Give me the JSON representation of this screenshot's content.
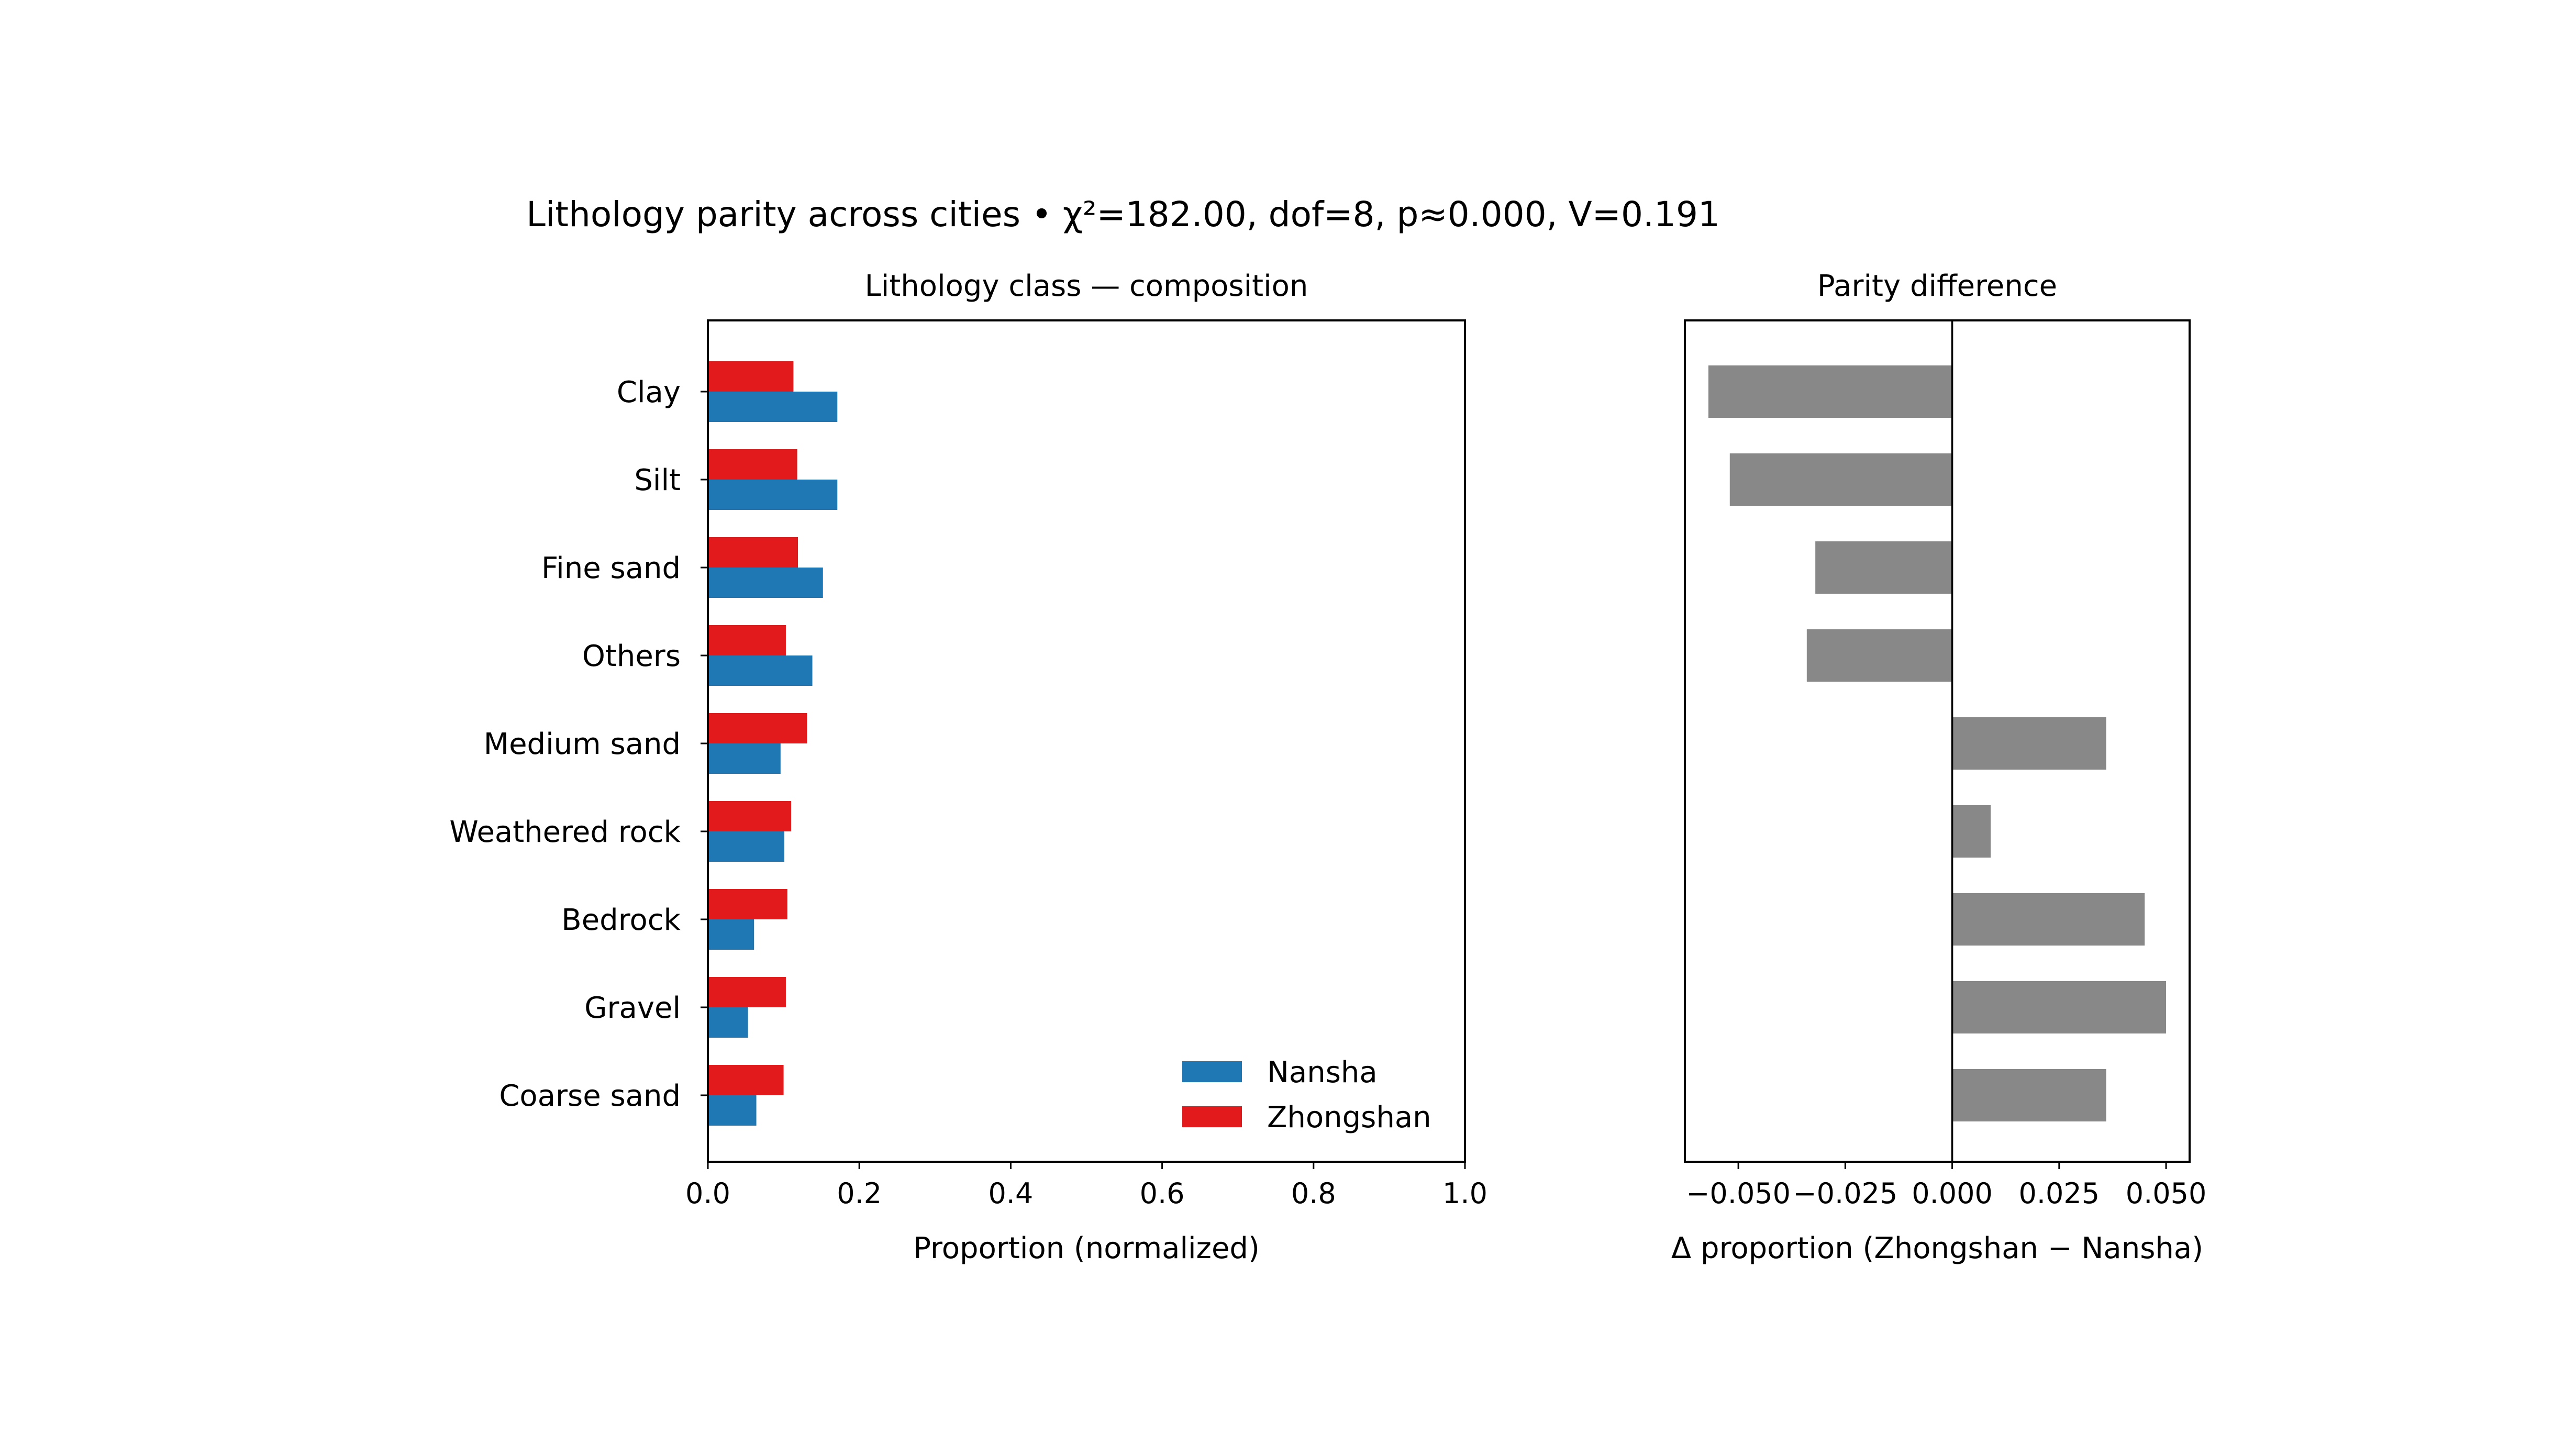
{
  "suptitle": "Lithology parity across cities • χ²=182.00, dof=8, p≈0.000, V=0.191",
  "chart_data": [
    {
      "type": "bar",
      "orientation": "horizontal",
      "title": "Lithology class — composition",
      "xlabel": "Proportion (normalized)",
      "ylabel": "",
      "xlim": [
        0.0,
        1.0
      ],
      "xticks": [
        "0.0",
        "0.2",
        "0.4",
        "0.6",
        "0.8",
        "1.0"
      ],
      "xtick_values": [
        0.0,
        0.2,
        0.4,
        0.6,
        0.8,
        1.0
      ],
      "grid": false,
      "legend_position": "lower-right",
      "categories": [
        "Clay",
        "Silt",
        "Fine sand",
        "Others",
        "Medium sand",
        "Weathered rock",
        "Bedrock",
        "Gravel",
        "Coarse sand"
      ],
      "series": [
        {
          "name": "Nansha",
          "color": "#1f77b4",
          "values": [
            0.171,
            0.171,
            0.152,
            0.138,
            0.096,
            0.101,
            0.061,
            0.053,
            0.064
          ]
        },
        {
          "name": "Zhongshan",
          "color": "#e31a1c",
          "values": [
            0.113,
            0.118,
            0.119,
            0.103,
            0.131,
            0.11,
            0.105,
            0.103,
            0.1
          ]
        }
      ]
    },
    {
      "type": "bar",
      "orientation": "horizontal",
      "title": "Parity difference",
      "xlabel": "Δ proportion (Zhongshan − Nansha)",
      "ylabel": "",
      "xlim": [
        -0.0625,
        0.0555
      ],
      "xticks": [
        "−0.050",
        "−0.025",
        "0.000",
        "0.025",
        "0.050"
      ],
      "xtick_values": [
        -0.05,
        -0.025,
        0.0,
        0.025,
        0.05
      ],
      "grid": false,
      "color": "#888888",
      "categories": [
        "Clay",
        "Silt",
        "Fine sand",
        "Others",
        "Medium sand",
        "Weathered rock",
        "Bedrock",
        "Gravel",
        "Coarse sand"
      ],
      "values": [
        -0.057,
        -0.052,
        -0.032,
        -0.034,
        0.036,
        0.009,
        0.045,
        0.05,
        0.036
      ]
    }
  ]
}
